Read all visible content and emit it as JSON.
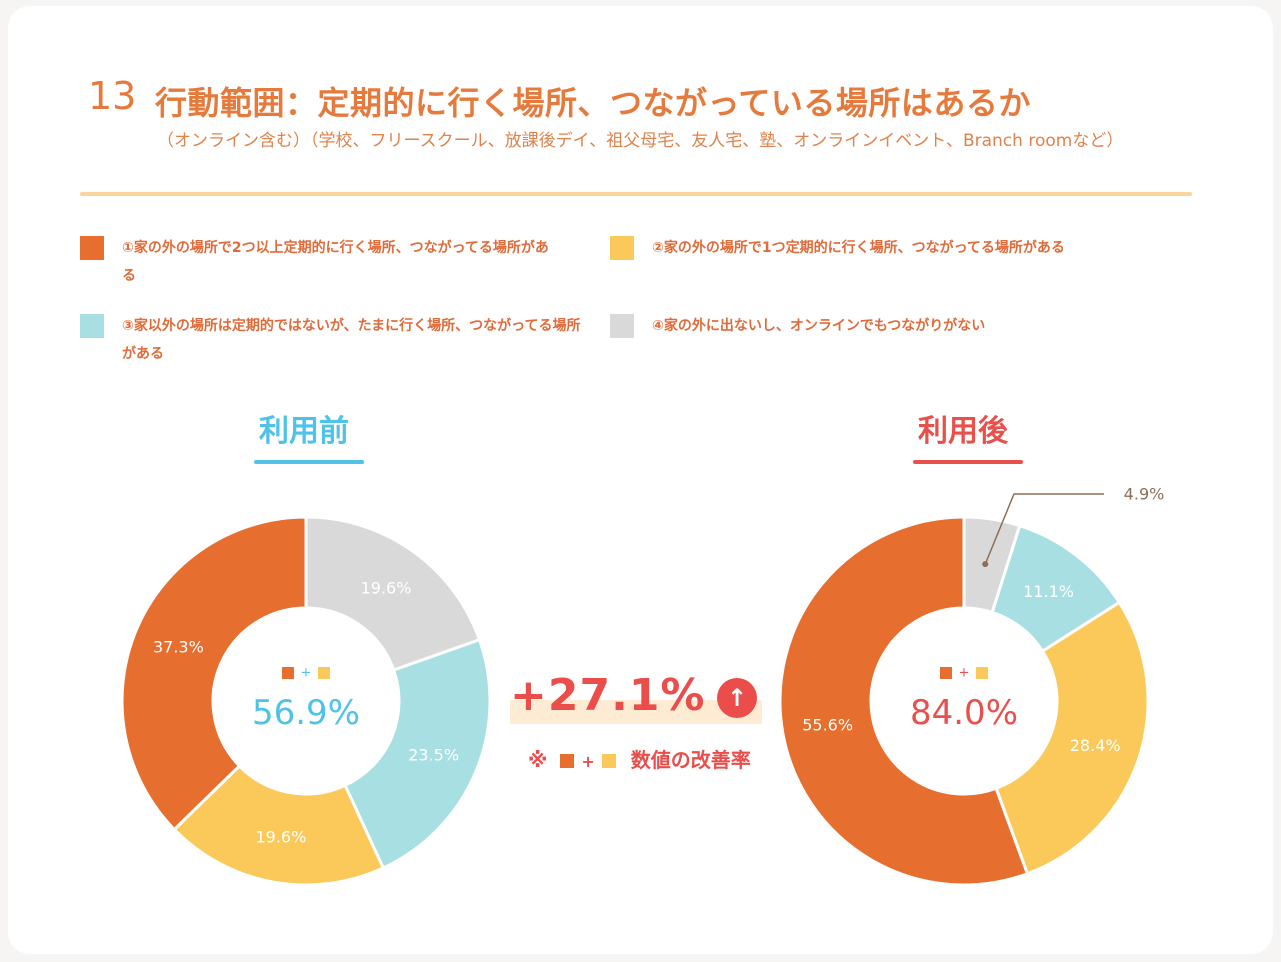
{
  "header": {
    "number": "13",
    "title": "行動範囲：定期的に行く場所、つながっている場所はあるか",
    "subtitle": "（オンライン含む）（学校、フリースクール、放課後デイ、祖父母宅、友人宅、塾、オンラインイベント、Branch roomなど）"
  },
  "legend": [
    {
      "label": "①家の外の場所で2つ以上定期的に行く場所、つながってる場所がある",
      "color": "#e66e2e"
    },
    {
      "label": "②家の外の場所で1つ定期的に行く場所、つながってる場所がある",
      "color": "#fbc95a"
    },
    {
      "label": "③家以外の場所は定期的ではないが、たまに行く場所、つながってる場所がある",
      "color": "#a8dfe2"
    },
    {
      "label": "④家の外に出ないし、オンラインでもつながりがない",
      "color": "#d9d9d9"
    }
  ],
  "colors": {
    "orange": "#e66e2e",
    "yellow": "#fbc95a",
    "cyan": "#a8dfe2",
    "gray": "#d9d9d9",
    "before_accent": "#4fc2e8",
    "after_accent": "#e8504c"
  },
  "chart_data": [
    {
      "type": "pie",
      "title": "利用前",
      "center_label": "56.9%",
      "categories": [
        "①",
        "②",
        "③",
        "④"
      ],
      "values": [
        37.3,
        19.6,
        23.5,
        19.6
      ],
      "labels": [
        "37.3%",
        "19.6%",
        "23.5%",
        "19.6%"
      ]
    },
    {
      "type": "pie",
      "title": "利用後",
      "center_label": "84.0%",
      "categories": [
        "①",
        "②",
        "③",
        "④"
      ],
      "values": [
        55.6,
        28.4,
        11.1,
        4.9
      ],
      "labels": [
        "55.6%",
        "28.4%",
        "11.1%",
        "4.9%"
      ]
    }
  ],
  "comparison": {
    "value": "+27.1%",
    "arrow": "↑",
    "note_prefix": "※",
    "note_plus": "+",
    "note_text": "数値の改善率"
  },
  "center_plus": "+"
}
